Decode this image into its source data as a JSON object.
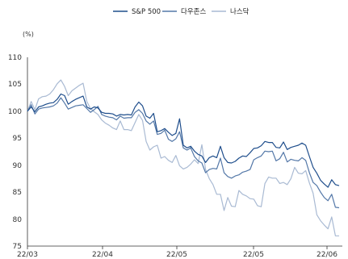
{
  "chart_data": {
    "type": "line",
    "unit_label": "(%)",
    "grid": false,
    "legend_position": "top-center",
    "ylim": [
      75,
      110
    ],
    "yticks": [
      75,
      80,
      85,
      90,
      95,
      100,
      105,
      110
    ],
    "x_tick_labels": [
      "22/03",
      "22/04",
      "22/05",
      "22/05",
      "22/06"
    ],
    "series": [
      {
        "name": "S&P 500",
        "color": "#1f4e8c",
        "values": [
          100,
          100.8,
          99.9,
          100.8,
          101,
          101.3,
          101.5,
          101.6,
          102.2,
          103.2,
          102.9,
          101.3,
          101.8,
          102.2,
          102.5,
          102.8,
          100.8,
          100.4,
          100.8,
          100.6,
          99.8,
          99.6,
          99.6,
          99.5,
          99.1,
          99.4,
          99.3,
          99.4,
          99.3,
          100.8,
          101.7,
          101,
          99.1,
          98.7,
          99.6,
          96.2,
          96.4,
          96.8,
          96.1,
          95.5,
          95.9,
          98.6,
          93.7,
          93.2,
          93.5,
          92.6,
          92,
          91.7,
          90.5,
          91.4,
          91.7,
          91.4,
          93.5,
          91.4,
          90.5,
          90.4,
          90.7,
          91.3,
          91.7,
          91.6,
          92.3,
          93.1,
          93.2,
          93.6,
          94.4,
          94.2,
          94.2,
          93.3,
          93.2,
          94.3,
          92.9,
          93.3,
          93.5,
          93.7,
          94.1,
          93.7,
          91.6,
          89.6,
          88.5,
          87.2,
          86.5,
          85.9,
          87.3,
          86.4,
          86.2
        ]
      },
      {
        "name": "다우존스",
        "color": "#5478a8",
        "values": [
          100,
          101.2,
          99.5,
          100.4,
          100.6,
          100.7,
          100.8,
          101,
          101.5,
          102.5,
          101.5,
          100.4,
          100.7,
          101,
          101.1,
          101.2,
          100.5,
          99.8,
          100.3,
          100.9,
          99.4,
          99.1,
          98.9,
          98.8,
          98.4,
          99.1,
          98.7,
          98.8,
          98.8,
          99.8,
          100.3,
          99.6,
          98.2,
          97.6,
          98.2,
          95.7,
          95.9,
          96.5,
          94.8,
          94.4,
          94.9,
          96.2,
          93.2,
          92.8,
          93.2,
          91.6,
          90.8,
          90.4,
          88.6,
          89.2,
          89.4,
          89.3,
          91.3,
          88.6,
          87.9,
          87.6,
          88,
          88.2,
          88.7,
          88.9,
          89.2,
          91,
          91.4,
          91.7,
          92.6,
          92.5,
          92.6,
          90.8,
          91.2,
          92.4,
          90.6,
          91.1,
          90.9,
          90.8,
          91.4,
          90.9,
          88.6,
          86.8,
          86.2,
          85,
          84,
          83.4,
          84.6,
          82.2,
          82.1
        ]
      },
      {
        "name": "나스닥",
        "color": "#a9bad3",
        "values": [
          100,
          101.8,
          100.3,
          102.3,
          102.7,
          102.8,
          103.2,
          104,
          105.1,
          105.8,
          104.6,
          102.9,
          103.8,
          104.3,
          104.8,
          105.2,
          101.8,
          100.5,
          99.9,
          99.4,
          98.4,
          97.8,
          97.4,
          96.9,
          96.6,
          98.2,
          96.6,
          96.6,
          96.4,
          97.9,
          99.4,
          98.3,
          94.4,
          92.8,
          93.4,
          93.7,
          91.3,
          91.6,
          90.9,
          90.5,
          91.8,
          89.9,
          89.3,
          89.6,
          90.2,
          91,
          90.3,
          93.8,
          89.2,
          87.5,
          86.4,
          84.6,
          84.6,
          81.6,
          84,
          82.4,
          82.3,
          85.3,
          84.6,
          84.3,
          83.8,
          83.7,
          82.5,
          82.3,
          86.6,
          87.8,
          87.6,
          87.6,
          86.6,
          86.8,
          86.4,
          87.5,
          89.6,
          88.5,
          88.4,
          89,
          86.7,
          84.8,
          80.8,
          79.7,
          78.9,
          78.2,
          80.4,
          76.9,
          76.9
        ]
      }
    ]
  }
}
